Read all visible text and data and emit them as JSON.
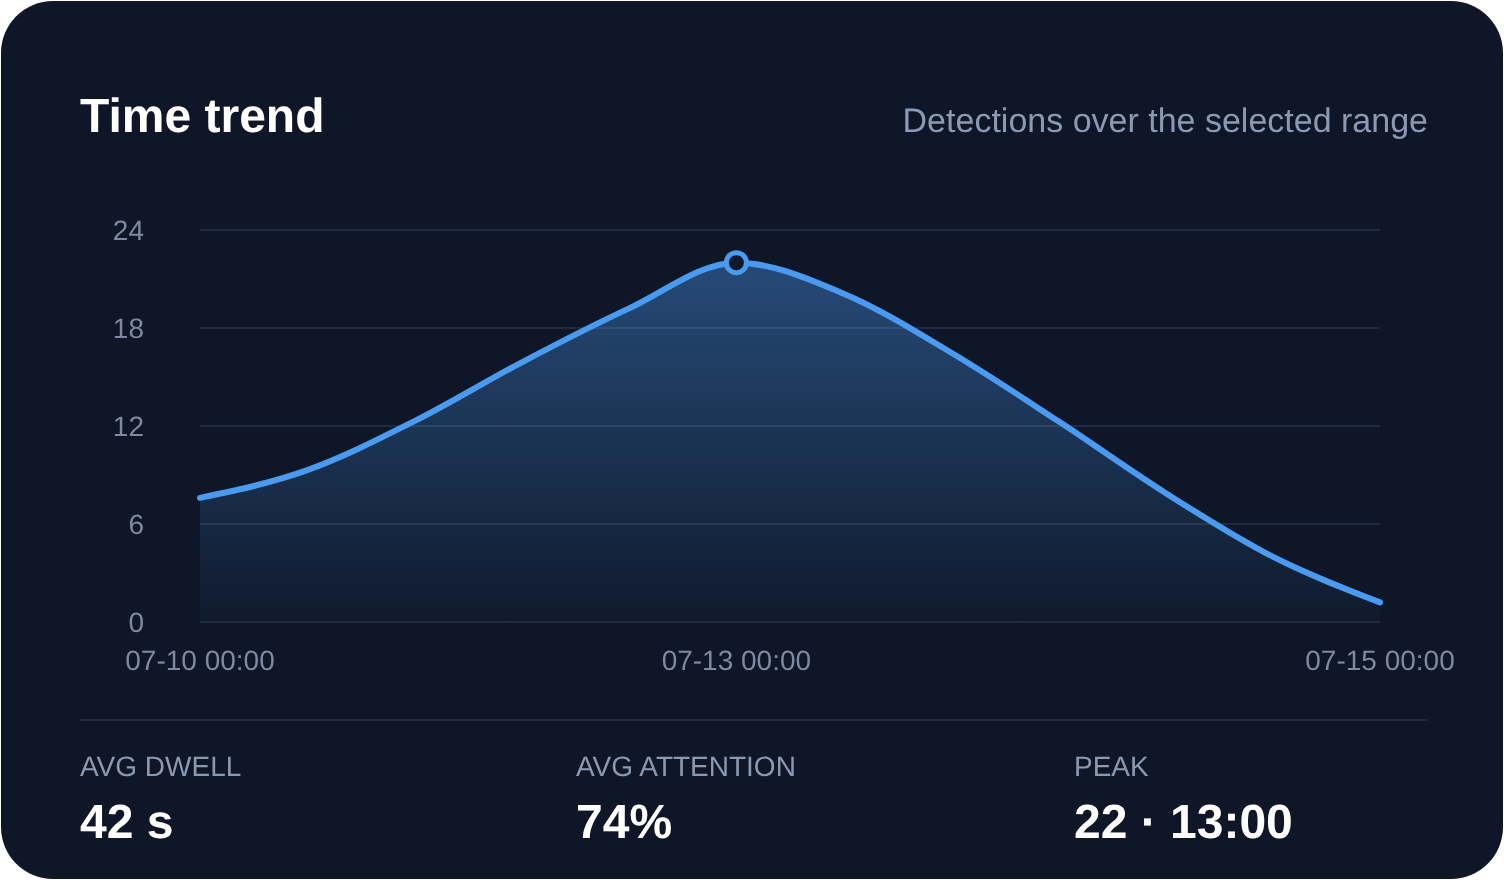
{
  "chart_data": {
    "type": "area",
    "title": "Time trend",
    "subtitle": "Detections over the selected range",
    "categories": [
      "07-10 00:00",
      null,
      null,
      null,
      null,
      "07-13 00:00",
      null,
      null,
      null,
      null,
      null,
      "07-15 00:00"
    ],
    "series": [
      {
        "color": "#4a9af0",
        "values": [
          7.6,
          9.3,
          12.3,
          15.9,
          19.2,
          22,
          20.1,
          16.5,
          12.3,
          7.9,
          4.0,
          1.2
        ]
      },
      {
        "type": "scatter",
        "color": "#4a9af0",
        "marker": "circle",
        "values": [
          null,
          null,
          null,
          null,
          null,
          22,
          null,
          null,
          null,
          null,
          null,
          null
        ]
      }
    ],
    "ylim": [
      0,
      24
    ],
    "yticks": [
      0,
      6,
      12,
      18,
      24
    ],
    "grid": "y",
    "annotations": [
      "AVG DWELL",
      "42 s",
      "AVG ATTENTION",
      "74%",
      "PEAK",
      "22 · 13:00"
    ]
  }
}
